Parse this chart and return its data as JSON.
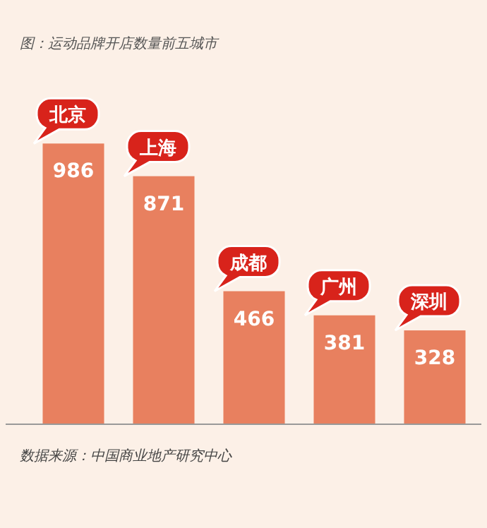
{
  "chart_data": {
    "type": "bar",
    "title": "图：运动品牌开店数量前五城市",
    "categories": [
      "北京",
      "上海",
      "成都",
      "广州",
      "深圳"
    ],
    "values": [
      986,
      871,
      466,
      381,
      328
    ],
    "color": "#e8805f",
    "data_labels": true,
    "annotations": [
      "数据来源：中国商业地产研究中心"
    ]
  }
}
